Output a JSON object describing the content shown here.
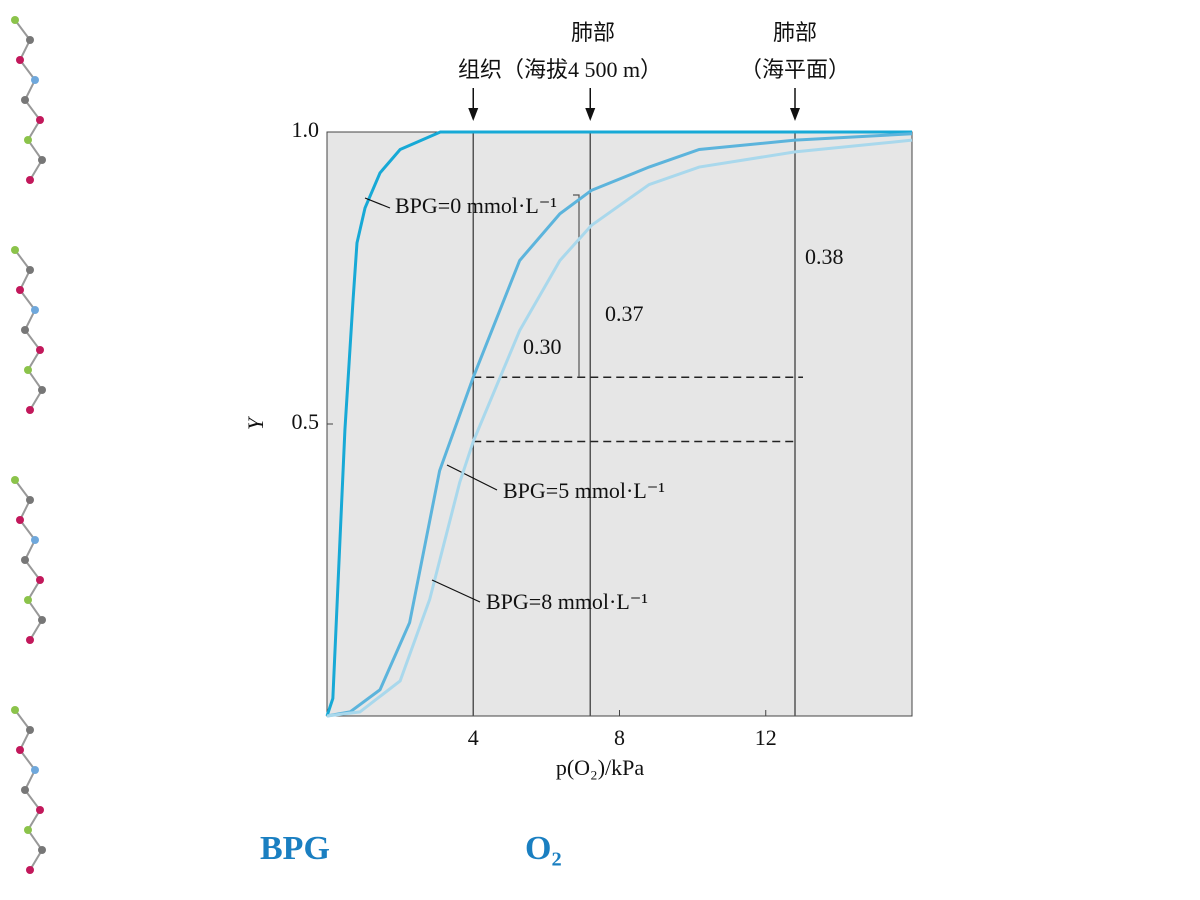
{
  "chart_data": {
    "type": "line",
    "annotations": [
      "肺部",
      "组织（海拔4 500 m）",
      "肺部",
      "（海平面）"
    ],
    "xlabel": "p(O₂)/kPa",
    "ylabel": "Y",
    "xlim": [
      0,
      16
    ],
    "ylim": [
      0,
      1
    ],
    "xticks": [
      4,
      8,
      12
    ],
    "yticks": [
      0.5,
      {
        "value": 1,
        "label": "1.0"
      }
    ],
    "vlines": [
      4,
      7.2,
      12.8
    ],
    "hlines": [
      0.58,
      0.47
    ],
    "difference_labels": [
      "0.30",
      "0.37",
      "0.38"
    ],
    "series": [
      {
        "name": "BPG=0 mmol·L⁻¹",
        "color": "#17a9d6",
        "x": [
          0,
          0.16,
          0.49,
          0.71,
          0.82,
          1.04,
          1.45,
          2.0,
          3.1,
          16
        ],
        "values": [
          0,
          0.03,
          0.49,
          0.71,
          0.81,
          0.87,
          0.93,
          0.97,
          1.0,
          1.0
        ]
      },
      {
        "name": "BPG=5 mmol·L⁻¹",
        "color": "#5cb4dc",
        "x": [
          0,
          0.63,
          1.45,
          2.26,
          3.08,
          4,
          5.27,
          6.37,
          7.23,
          8.81,
          10.18,
          12.8,
          16
        ],
        "values": [
          0,
          0.007,
          0.045,
          0.16,
          0.42,
          0.58,
          0.78,
          0.86,
          0.9,
          0.94,
          0.97,
          0.986,
          0.997
        ]
      },
      {
        "name": "BPG=8 mmol·L⁻¹",
        "color": "#a9d8ec",
        "x": [
          0,
          0.9,
          2,
          2.81,
          3.63,
          4,
          5.27,
          6.37,
          7.23,
          8.81,
          10.18,
          12.8,
          16
        ],
        "values": [
          0,
          0.007,
          0.06,
          0.2,
          0.4,
          0.47,
          0.66,
          0.78,
          0.84,
          0.91,
          0.94,
          0.966,
          0.986
        ]
      }
    ]
  },
  "footer": [
    "BPG",
    "O₂"
  ]
}
